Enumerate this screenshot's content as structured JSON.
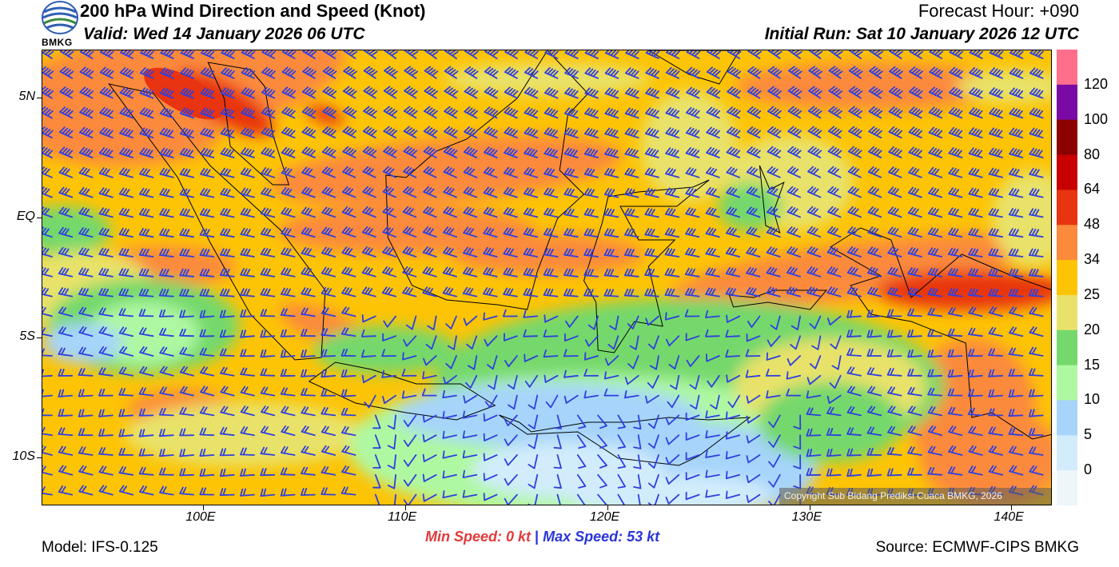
{
  "header": {
    "title": "200 hPa Wind Direction and Speed (Knot)",
    "valid": "Valid: Wed 14 January 2026 06 UTC",
    "forecast_hour": "Forecast Hour: +090",
    "initial_run": "Initial Run: Sat 10 January 2026 12 UTC",
    "logo_text": "BMKG"
  },
  "map": {
    "lat_labels": [
      "5N",
      "EQ",
      "5S",
      "10S"
    ],
    "lon_labels": [
      "100E",
      "110E",
      "120E",
      "130E",
      "140E"
    ],
    "lat_values": [
      5,
      0,
      -5,
      -10
    ],
    "lon_values": [
      100,
      110,
      120,
      130,
      140
    ],
    "lon_range": [
      92,
      142
    ],
    "lat_range": [
      -12,
      7
    ],
    "copyright": "Copyright Sub Bidang Prediksi Cuaca BMKG, 2026",
    "barb_color": "#2f3fe0",
    "coast_color": "#000000"
  },
  "colorbar": {
    "labels": [
      "120",
      "100",
      "80",
      "64",
      "48",
      "34",
      "25",
      "20",
      "15",
      "10",
      "5",
      "0"
    ],
    "colors": [
      "#ff6f8c",
      "#7a0aa5",
      "#8b0000",
      "#c80000",
      "#e83410",
      "#fb8a3c",
      "#fdc405",
      "#e8e26a",
      "#74d86c",
      "#aff8a2",
      "#a6d4fb",
      "#d2ecfc",
      "#eef6fc"
    ]
  },
  "footer": {
    "min_speed": "Min Speed:   0 kt",
    "separator": "|",
    "max_speed": "Max Speed:  53 kt",
    "model": "Model: IFS-0.125",
    "source": "Source: ECMWF-CIPS BMKG"
  }
}
